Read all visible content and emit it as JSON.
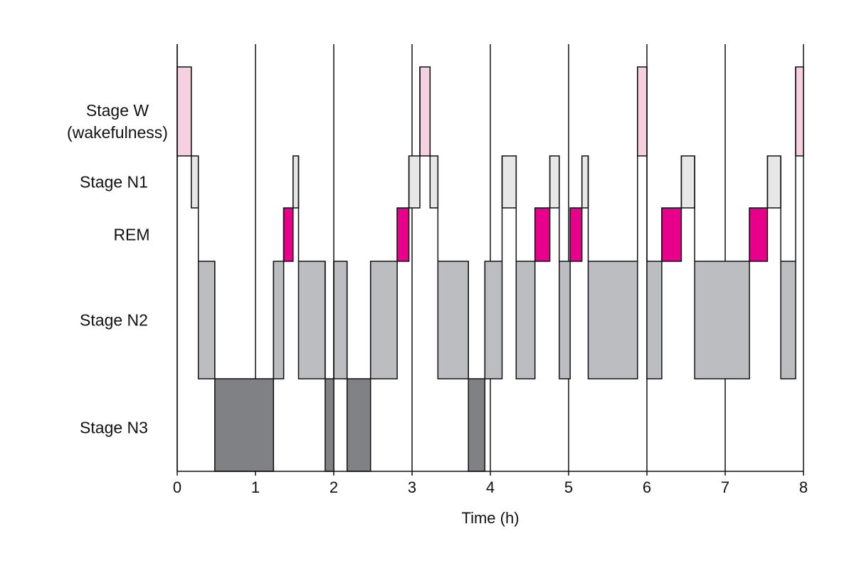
{
  "chart_data": {
    "type": "hypnogram",
    "xlabel": "Time (h)",
    "xlim": [
      0,
      8
    ],
    "xticks": [
      0,
      1,
      2,
      3,
      4,
      5,
      6,
      7,
      8
    ],
    "grid": true,
    "series": [
      {
        "name": "Stage W (wakefulness)",
        "color": "#f5d0e1",
        "starts": [
          0,
          3.1,
          5.88,
          7.9
        ],
        "ends": [
          0.18,
          3.23,
          6.0,
          8.0
        ]
      },
      {
        "name": "Stage N1",
        "color": "#e7e7e8",
        "starts": [
          0.18,
          1.48,
          2.96,
          3.23,
          4.15,
          4.76,
          5.17,
          6.44,
          7.54
        ],
        "ends": [
          0.27,
          1.55,
          3.1,
          3.33,
          4.33,
          4.88,
          5.25,
          6.61,
          7.71
        ]
      },
      {
        "name": "REM",
        "color": "#e6008a",
        "starts": [
          1.36,
          2.81,
          4.57,
          5.02,
          6.19,
          7.31
        ],
        "ends": [
          1.48,
          2.96,
          4.76,
          5.17,
          6.44,
          7.54
        ]
      },
      {
        "name": "Stage N2",
        "color": "#bcbdc0",
        "starts": [
          0.27,
          1.23,
          1.55,
          2.0,
          2.47,
          3.33,
          3.93,
          4.33,
          4.88,
          5.25,
          6.0,
          6.61,
          7.71
        ],
        "ends": [
          0.48,
          1.36,
          1.89,
          2.17,
          2.81,
          3.72,
          4.15,
          4.57,
          5.02,
          5.88,
          6.19,
          7.31,
          7.9
        ]
      },
      {
        "name": "Stage N3",
        "color": "#808184",
        "starts": [
          0.48,
          1.89,
          2.17,
          3.72
        ],
        "ends": [
          1.23,
          2.0,
          2.47,
          3.93
        ]
      }
    ]
  }
}
